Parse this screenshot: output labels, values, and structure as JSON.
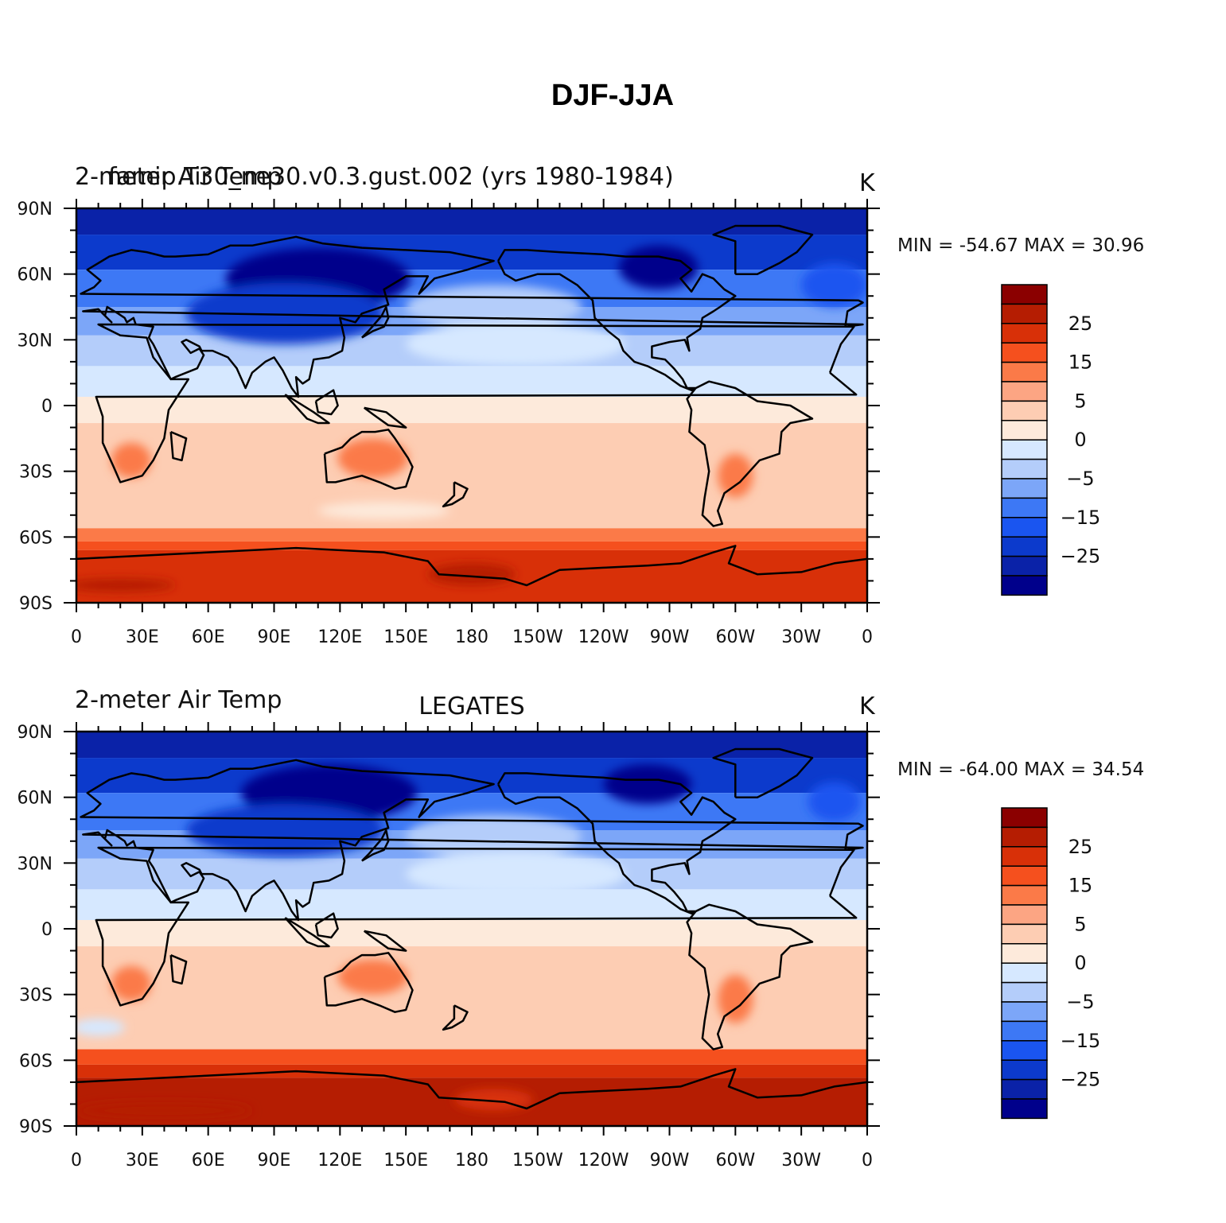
{
  "figure": {
    "title": "DJF-JJA"
  },
  "colors": {
    "levels": [
      "#00008b",
      "#0a22a8",
      "#0c3acc",
      "#1a55f0",
      "#3d78f5",
      "#7ca6f8",
      "#b4cdfa",
      "#d6e8ff",
      "#fdeadb",
      "#fdcdb3",
      "#fca583",
      "#fb7a48",
      "#f5501e",
      "#d83008",
      "#b51d02",
      "#8b0000"
    ],
    "coast": "#000000"
  },
  "chart_data": [
    {
      "type": "heatmap",
      "left_title": "2-meter Air Temp",
      "overlay_title": "famip.T30_ne30.v0.3.gust.002 (yrs 1980-1984)",
      "center_title": "",
      "units": "K",
      "stats": {
        "min_label": "MIN =",
        "min": "-54.67",
        "max_label": "MAX =",
        "max": "30.96"
      },
      "x_ticks": [
        "0",
        "30E",
        "60E",
        "90E",
        "120E",
        "150E",
        "180",
        "150W",
        "120W",
        "90W",
        "60W",
        "30W",
        "0"
      ],
      "y_ticks": [
        "90N",
        "60N",
        "30N",
        "0",
        "30S",
        "60S",
        "90S"
      ],
      "colorbar_labels": [
        "25",
        "15",
        "5",
        "0",
        "-5",
        "-15",
        "-25"
      ],
      "colorbar_bins": 16,
      "xlim": [
        0,
        360
      ],
      "ylim": [
        -90,
        90
      ],
      "latitude_bands": [
        {
          "lat_from": 90,
          "lat_to": 78,
          "level": 1
        },
        {
          "lat_from": 78,
          "lat_to": 62,
          "level": 2
        },
        {
          "lat_from": 62,
          "lat_to": 45,
          "level": 4
        },
        {
          "lat_from": 45,
          "lat_to": 32,
          "level": 5
        },
        {
          "lat_from": 32,
          "lat_to": 18,
          "level": 6
        },
        {
          "lat_from": 18,
          "lat_to": 4,
          "level": 7
        },
        {
          "lat_from": 4,
          "lat_to": -8,
          "level": 8
        },
        {
          "lat_from": -8,
          "lat_to": -56,
          "level": 9
        },
        {
          "lat_from": -56,
          "lat_to": -62,
          "level": 11
        },
        {
          "lat_from": -62,
          "lat_to": -66,
          "level": 12
        },
        {
          "lat_from": -66,
          "lat_to": -90,
          "level": 13
        }
      ],
      "regions": [
        {
          "name": "siberia-core",
          "lon": 110,
          "lat": 58,
          "rx": 42,
          "ry": 14,
          "level": 0
        },
        {
          "name": "north-america-core",
          "lon": 265,
          "lat": 63,
          "rx": 18,
          "ry": 10,
          "level": 0
        },
        {
          "name": "asia-cold",
          "lon": 95,
          "lat": 42,
          "rx": 45,
          "ry": 14,
          "level": 2
        },
        {
          "name": "north-atlantic-cold",
          "lon": 345,
          "lat": 55,
          "rx": 15,
          "ry": 10,
          "level": 3
        },
        {
          "name": "north-pacific-mild",
          "lon": 190,
          "lat": 45,
          "rx": 40,
          "ry": 10,
          "level": 6
        },
        {
          "name": "north-pacific-light",
          "lon": 200,
          "lat": 28,
          "rx": 50,
          "ry": 10,
          "level": 7
        },
        {
          "name": "australia-warm",
          "lon": 135,
          "lat": -24,
          "rx": 16,
          "ry": 9,
          "level": 11
        },
        {
          "name": "south-africa-warm",
          "lon": 25,
          "lat": -25,
          "rx": 9,
          "ry": 8,
          "level": 11
        },
        {
          "name": "south-america-warm",
          "lon": 300,
          "lat": -32,
          "rx": 8,
          "ry": 10,
          "level": 11
        },
        {
          "name": "southern-ocean-pale",
          "lon": 140,
          "lat": -48,
          "rx": 30,
          "ry": 4,
          "level": 8
        },
        {
          "name": "ross-sea-hot",
          "lon": 180,
          "lat": -77,
          "rx": 20,
          "ry": 5,
          "level": 14
        },
        {
          "name": "antarctic-hot",
          "lon": 20,
          "lat": -82,
          "rx": 25,
          "ry": 3,
          "level": 14
        }
      ]
    },
    {
      "type": "heatmap",
      "left_title": "2-meter Air Temp",
      "overlay_title": "",
      "center_title": "LEGATES",
      "units": "K",
      "stats": {
        "min_label": "MIN =",
        "min": "-64.00",
        "max_label": "MAX =",
        "max": "34.54"
      },
      "x_ticks": [
        "0",
        "30E",
        "60E",
        "90E",
        "120E",
        "150E",
        "180",
        "150W",
        "120W",
        "90W",
        "60W",
        "30W",
        "0"
      ],
      "y_ticks": [
        "90N",
        "60N",
        "30N",
        "0",
        "30S",
        "60S",
        "90S"
      ],
      "colorbar_labels": [
        "25",
        "15",
        "5",
        "0",
        "-5",
        "-15",
        "-25"
      ],
      "colorbar_bins": 16,
      "xlim": [
        0,
        360
      ],
      "ylim": [
        -90,
        90
      ],
      "latitude_bands": [
        {
          "lat_from": 90,
          "lat_to": 78,
          "level": 1
        },
        {
          "lat_from": 78,
          "lat_to": 62,
          "level": 2
        },
        {
          "lat_from": 62,
          "lat_to": 45,
          "level": 4
        },
        {
          "lat_from": 45,
          "lat_to": 32,
          "level": 5
        },
        {
          "lat_from": 32,
          "lat_to": 18,
          "level": 6
        },
        {
          "lat_from": 18,
          "lat_to": 4,
          "level": 7
        },
        {
          "lat_from": 4,
          "lat_to": -8,
          "level": 8
        },
        {
          "lat_from": -8,
          "lat_to": -55,
          "level": 9
        },
        {
          "lat_from": -55,
          "lat_to": -62,
          "level": 12
        },
        {
          "lat_from": -62,
          "lat_to": -68,
          "level": 13
        },
        {
          "lat_from": -68,
          "lat_to": -90,
          "level": 14
        }
      ],
      "regions": [
        {
          "name": "siberia-core",
          "lon": 115,
          "lat": 62,
          "rx": 40,
          "ry": 13,
          "level": 0
        },
        {
          "name": "north-america-core",
          "lon": 260,
          "lat": 66,
          "rx": 20,
          "ry": 9,
          "level": 0
        },
        {
          "name": "asia-cold",
          "lon": 95,
          "lat": 45,
          "rx": 45,
          "ry": 12,
          "level": 2
        },
        {
          "name": "north-atlantic-cold",
          "lon": 345,
          "lat": 58,
          "rx": 12,
          "ry": 9,
          "level": 3
        },
        {
          "name": "north-pacific-mild",
          "lon": 190,
          "lat": 42,
          "rx": 40,
          "ry": 10,
          "level": 6
        },
        {
          "name": "north-pacific-light",
          "lon": 200,
          "lat": 25,
          "rx": 50,
          "ry": 10,
          "level": 7
        },
        {
          "name": "australia-warm",
          "lon": 135,
          "lat": -22,
          "rx": 16,
          "ry": 8,
          "level": 11
        },
        {
          "name": "south-africa-warm",
          "lon": 25,
          "lat": -25,
          "rx": 9,
          "ry": 8,
          "level": 11
        },
        {
          "name": "south-america-warm",
          "lon": 300,
          "lat": -32,
          "rx": 8,
          "ry": 11,
          "level": 11
        },
        {
          "name": "south-atlantic-pale",
          "lon": 10,
          "lat": -45,
          "rx": 12,
          "ry": 4,
          "level": 7
        },
        {
          "name": "antarctic-hot",
          "lon": 40,
          "lat": -83,
          "rx": 40,
          "ry": 4,
          "level": 14
        },
        {
          "name": "ross-sea-hot",
          "lon": 190,
          "lat": -78,
          "rx": 18,
          "ry": 5,
          "level": 13
        }
      ]
    }
  ]
}
